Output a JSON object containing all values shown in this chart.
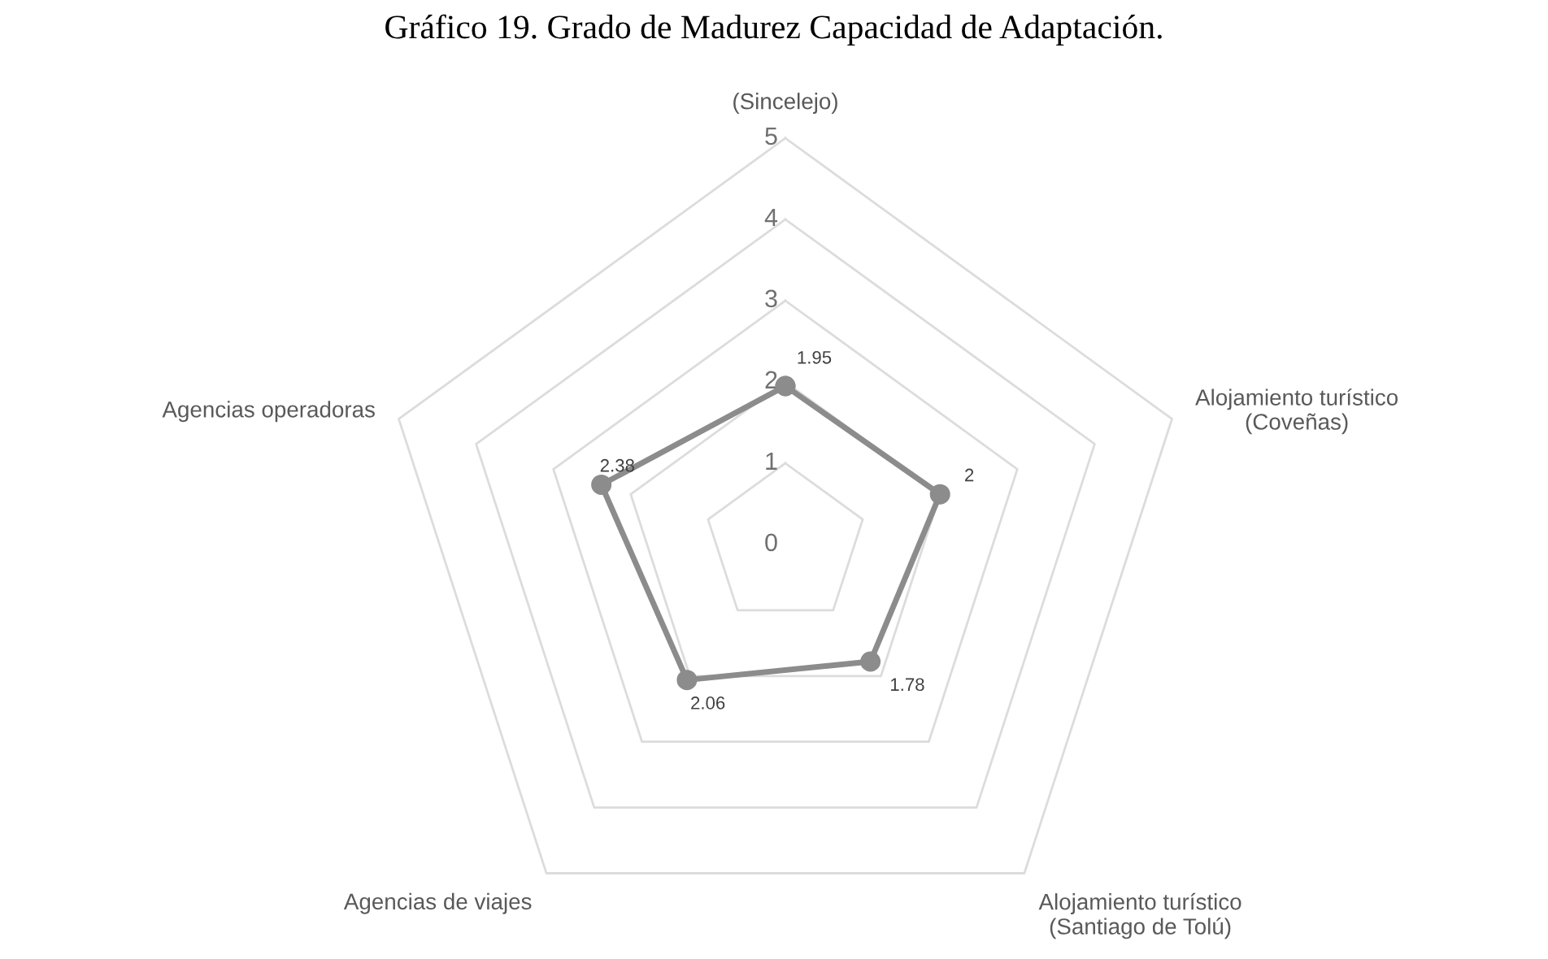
{
  "chart_data": {
    "type": "radar",
    "title": "Gráfico 19. Grado de Madurez Capacidad de Adaptación.",
    "categories": [
      "(Sincelejo)",
      "Alojamiento turístico\n(Coveñas)",
      "Alojamiento turístico\n(Santiago de Tolú)",
      "Agencias de viajes",
      "Agencias operadoras"
    ],
    "series": [
      {
        "color": "#8c8c8c",
        "values": [
          1.95,
          2,
          1.78,
          2.06,
          2.38
        ]
      }
    ],
    "ylim": [
      0,
      5
    ],
    "yticks": [
      0,
      1,
      2,
      3,
      4,
      5
    ],
    "grid": true,
    "marker": "circle",
    "line_style": "solid",
    "data_labels": true
  }
}
